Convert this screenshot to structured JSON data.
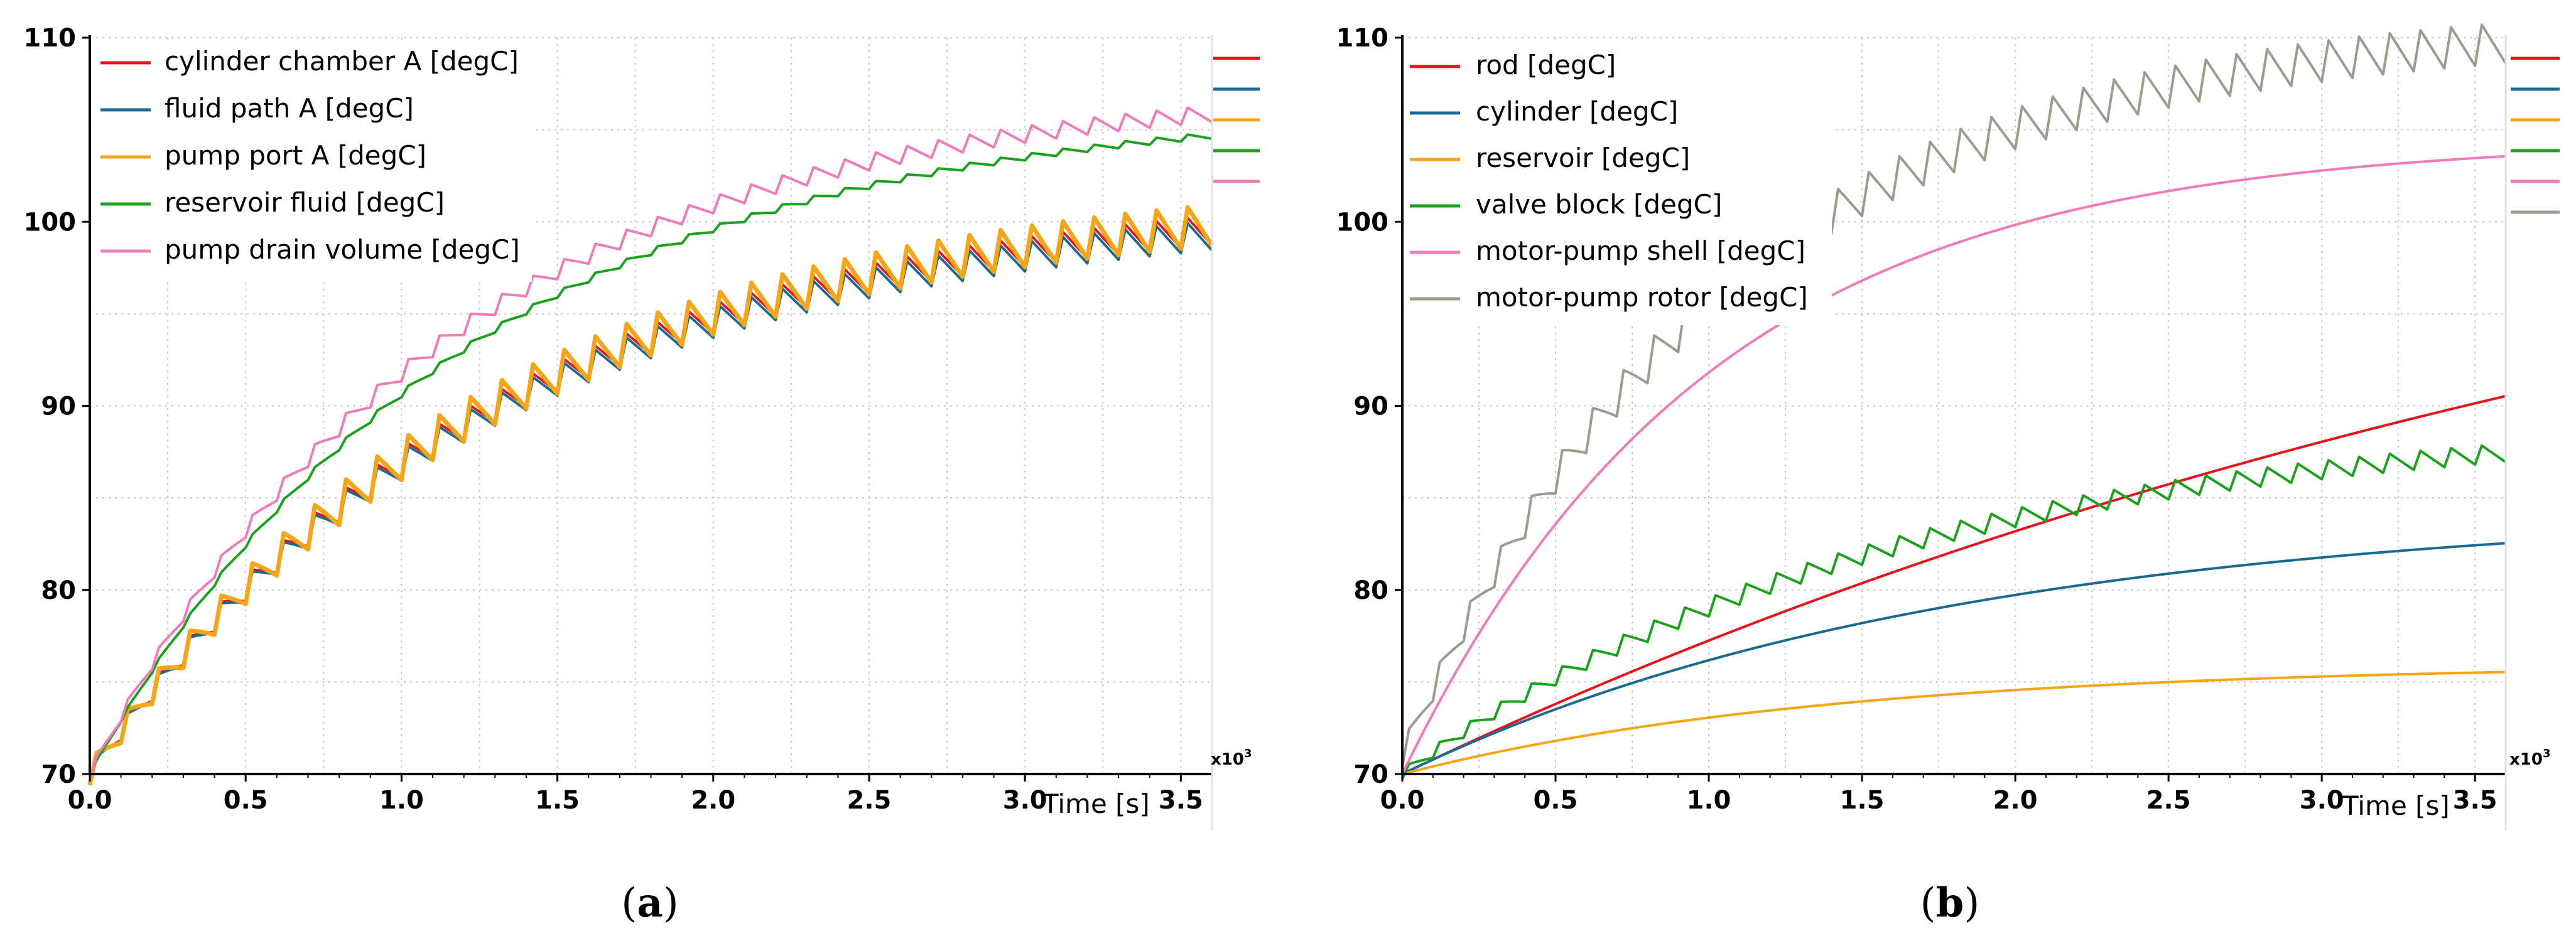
{
  "chart_data": [
    {
      "id": "a",
      "type": "line",
      "caption": {
        "open": "(",
        "letter": "a",
        "close": ")"
      },
      "xlabel": "Time [s]",
      "x_multiplier": "x10",
      "x_multiplier_exp": "3",
      "xlim": [
        0,
        3.6
      ],
      "ylim": [
        70,
        110
      ],
      "xticks": [
        "0.0",
        "0.5",
        "1.0",
        "1.5",
        "2.0",
        "2.5",
        "3.0",
        "3.5"
      ],
      "xtick_values": [
        0,
        0.5,
        1,
        1.5,
        2,
        2.5,
        3,
        3.5
      ],
      "yticks": [
        "70",
        "80",
        "90",
        "100",
        "110"
      ],
      "ytick_values": [
        70,
        80,
        90,
        100,
        110
      ],
      "grid": true,
      "legend_position": "top-left",
      "series": [
        {
          "name": "cylinder chamber A [degC]",
          "color": "#e8141c",
          "start": 70,
          "end": 101.5,
          "tau": 1.3,
          "saw": 1.6,
          "period": 0.1
        },
        {
          "name": "fluid path A [degC]",
          "color": "#1a6b8f",
          "start": 70,
          "end": 101.2,
          "tau": 1.3,
          "saw": 1.6,
          "period": 0.1
        },
        {
          "name": "pump port A [degC]",
          "color": "#f5a516",
          "start": 70,
          "end": 101.8,
          "tau": 1.3,
          "saw": 2.2,
          "period": 0.1
        },
        {
          "name": "reservoir fluid [degC]",
          "color": "#1aa31a",
          "start": 70,
          "end": 106.5,
          "tau": 1.2,
          "saw": 0.35,
          "period": 0.1
        },
        {
          "name": "pump drain volume [degC]",
          "color": "#f07bb8",
          "start": 70,
          "end": 107.5,
          "tau": 1.15,
          "saw": 0.9,
          "period": 0.1
        }
      ]
    },
    {
      "id": "b",
      "type": "line",
      "caption": {
        "open": "(",
        "letter": "b",
        "close": ")"
      },
      "xlabel": "Time [s]",
      "x_multiplier": "x10",
      "x_multiplier_exp": "3",
      "xlim": [
        0,
        3.6
      ],
      "ylim": [
        70,
        110
      ],
      "xticks": [
        "0.0",
        "0.5",
        "1.0",
        "1.5",
        "2.0",
        "2.5",
        "3.0",
        "3.5"
      ],
      "xtick_values": [
        0,
        0.5,
        1,
        1.5,
        2,
        2.5,
        3,
        3.5
      ],
      "yticks": [
        "70",
        "80",
        "90",
        "100",
        "110"
      ],
      "ytick_values": [
        70,
        80,
        90,
        100,
        110
      ],
      "grid": true,
      "legend_position": "top-left",
      "series": [
        {
          "name": "rod [degC]",
          "color": "#e8141c",
          "start": 70,
          "end": 110,
          "tau": 5.0,
          "saw": 0.0,
          "period": 0.1
        },
        {
          "name": "cylinder [degC]",
          "color": "#1a6b8f",
          "start": 70,
          "end": 84.5,
          "tau": 1.8,
          "saw": 0.0,
          "period": 0.1
        },
        {
          "name": "reservoir [degC]",
          "color": "#f5a516",
          "start": 70,
          "end": 76.0,
          "tau": 1.4,
          "saw": 0.0,
          "period": 0.1
        },
        {
          "name": "valve block [degC]",
          "color": "#1aa31a",
          "start": 70,
          "end": 89.5,
          "tau": 1.6,
          "saw": 1.0,
          "period": 0.1
        },
        {
          "name": "motor-pump shell [degC]",
          "color": "#f07bb8",
          "start": 70,
          "end": 104.5,
          "tau": 1.0,
          "saw": 0.0,
          "period": 0.1
        },
        {
          "name": "motor-pump rotor [degC]",
          "color": "#9c9c8c",
          "start": 71,
          "end": 111.0,
          "tau": 1.05,
          "saw": 2.2,
          "period": 0.1
        }
      ]
    }
  ]
}
